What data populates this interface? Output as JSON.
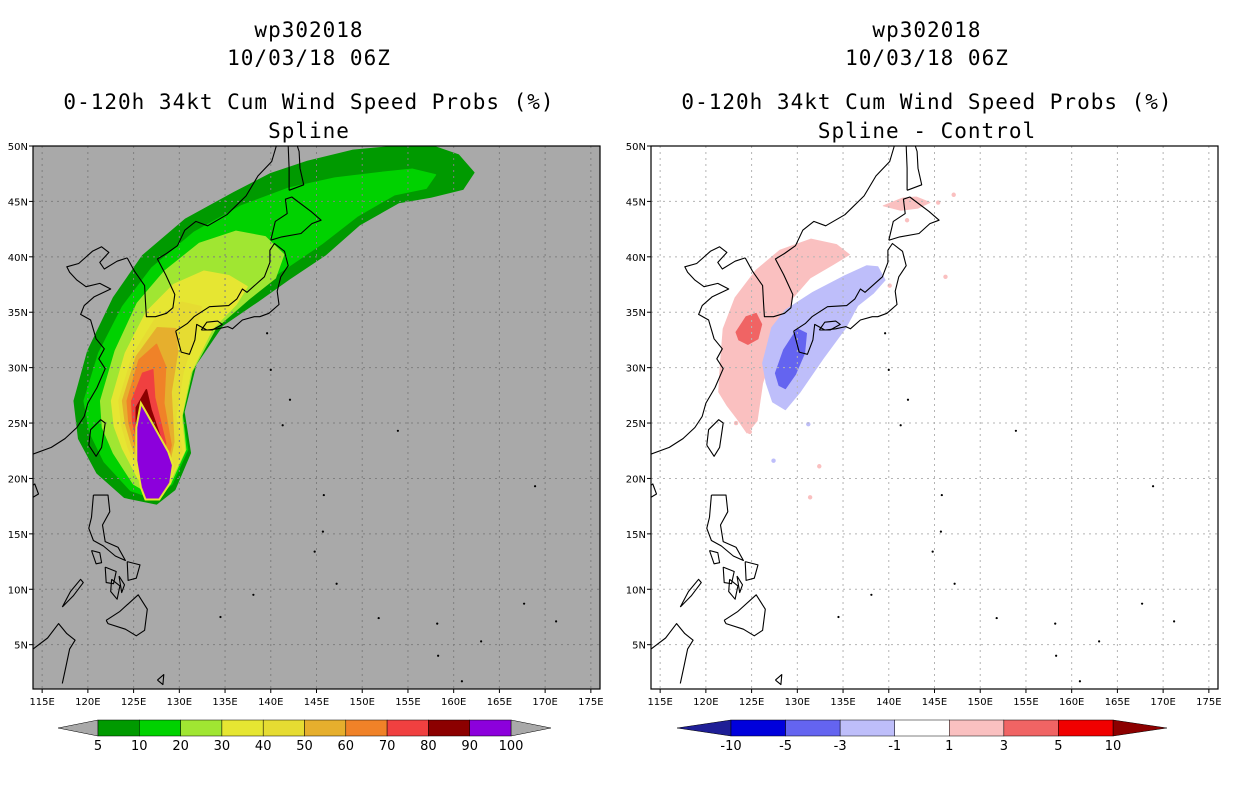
{
  "left_panel": {
    "title_line1": "wp302018",
    "title_line2": "10/03/18 06Z",
    "title_line3": "0-120h 34kt Cum Wind Speed Probs (%)",
    "title_line4": "Spline",
    "colorbar": {
      "colors": [
        "#009a00",
        "#00d200",
        "#a0e632",
        "#e6e632",
        "#e6dc32",
        "#e6af2d",
        "#f08228",
        "#f04040",
        "#8c0000",
        "#8c00dc"
      ],
      "labels": [
        "5",
        "10",
        "20",
        "30",
        "40",
        "50",
        "60",
        "70",
        "80",
        "90",
        "100"
      ]
    },
    "background_color": "#a9a9a9"
  },
  "right_panel": {
    "title_line1": "wp302018",
    "title_line2": "10/03/18 06Z",
    "title_line3": "0-120h 34kt Cum Wind Speed Probs (%)",
    "title_line4": "Spline - Control",
    "colorbar": {
      "colors": [
        "#0000dc",
        "#6464f0",
        "#bebefa",
        "#ffffff",
        "#fac0c0",
        "#f06464",
        "#f00000"
      ],
      "end_low": "#1e1e96",
      "end_high": "#8c0000",
      "labels": [
        "-10",
        "-5",
        "-3",
        "-1",
        "1",
        "3",
        "5",
        "10"
      ]
    }
  },
  "axes": {
    "lon_labels": [
      "115E",
      "120E",
      "125E",
      "130E",
      "135E",
      "140E",
      "145E",
      "150E",
      "155E",
      "160E",
      "165E",
      "170E",
      "175E"
    ],
    "lat_labels": [
      "5N",
      "10N",
      "15N",
      "20N",
      "25N",
      "30N",
      "35N",
      "40N",
      "45N",
      "50N"
    ]
  },
  "chart_data": [
    {
      "type": "heatmap",
      "title": "0-120h 34kt Cum Wind Speed Probs (%) — Spline",
      "storm": "wp302018",
      "time": "10/03/18 06Z",
      "units": "%",
      "contour_levels": [
        5,
        10,
        20,
        30,
        40,
        50,
        60,
        70,
        80,
        90,
        100
      ],
      "lon_range": [
        114,
        176
      ],
      "lat_range": [
        1,
        50
      ],
      "max_region": "near 126-130E, 18-27N (90-100%)"
    },
    {
      "type": "heatmap",
      "title": "0-120h 34kt Cum Wind Speed Probs (%) — Spline - Control",
      "storm": "wp302018",
      "time": "10/03/18 06Z",
      "units": "%",
      "contour_levels": [
        -10,
        -5,
        -3,
        -1,
        1,
        3,
        5,
        10
      ],
      "lon_range": [
        114,
        176
      ],
      "lat_range": [
        1,
        50
      ]
    }
  ]
}
